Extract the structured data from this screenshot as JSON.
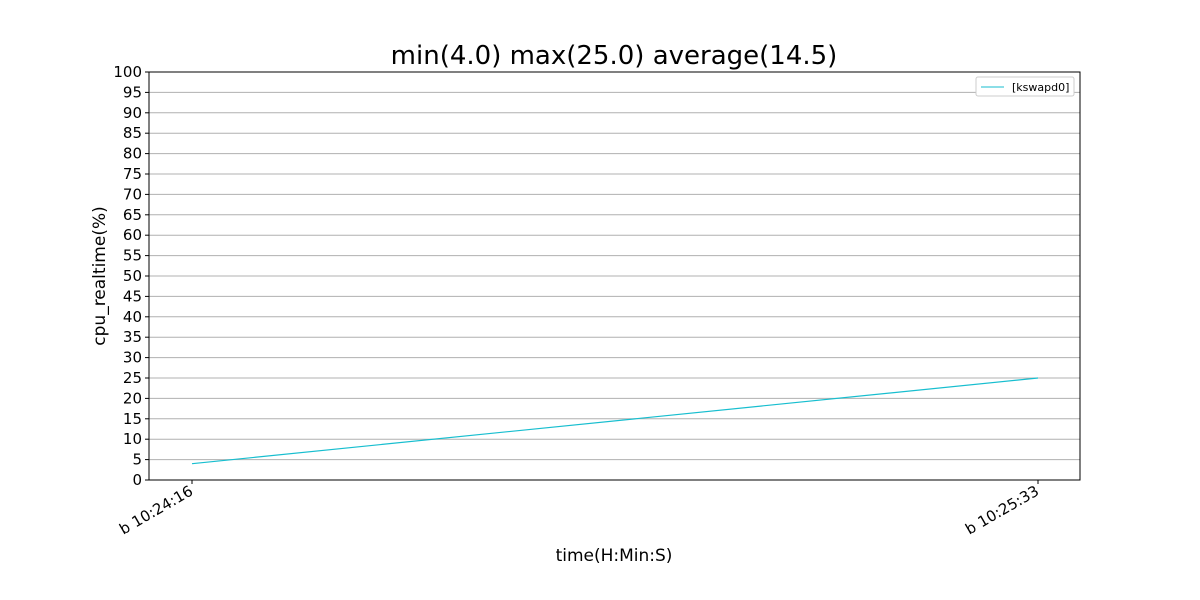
{
  "chart_data": {
    "type": "line",
    "title": "min(4.0) max(25.0) average(14.5)",
    "xlabel": "time(H:Min:S)",
    "ylabel": "cpu_realtime(%)",
    "x": [
      "b 10:24:16",
      "b 10:25:33"
    ],
    "series": [
      {
        "name": "[kswapd0]",
        "values": [
          4.0,
          25.0
        ],
        "color": "#17becf"
      }
    ],
    "ylim": [
      0,
      100
    ],
    "ytick_step": 5,
    "grid": "horizontal",
    "legend_position": "top-right",
    "x_tick_rotation": "30deg"
  }
}
